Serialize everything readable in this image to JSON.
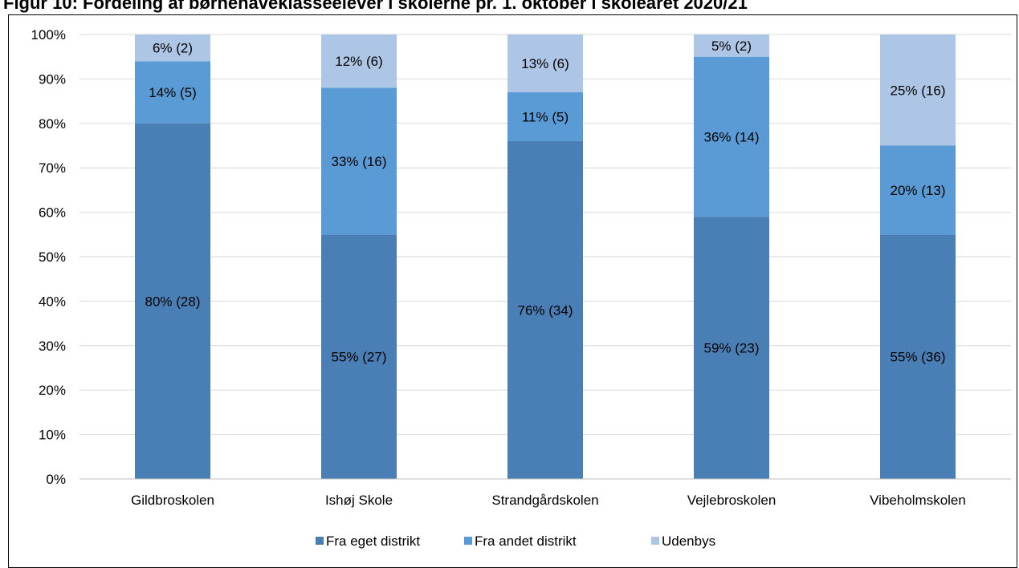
{
  "page_title": "Figur 10: Fordeling af børnehaveklasseelever i skolerne pr. 1. oktober i skoleåret 2020/21",
  "chart_data": {
    "type": "bar",
    "stacked": true,
    "title": "Figur 10: Fordeling af børnehaveklasseelever i skolerne pr. 1. oktober i skoleåret 2020/21",
    "xlabel": "",
    "ylabel": "",
    "ylim": [
      0,
      100
    ],
    "yticks": [
      0,
      10,
      20,
      30,
      40,
      50,
      60,
      70,
      80,
      90,
      100
    ],
    "ytick_format": "percent",
    "grid": true,
    "legend_position": "bottom",
    "categories": [
      "Gildbroskolen",
      "Ishøj Skole",
      "Strandgårdskolen",
      "Vejlebroskolen",
      "Vibeholmskolen"
    ],
    "series": [
      {
        "name": "Fra eget distrikt",
        "color": "#4a7fb5",
        "values": [
          80,
          55,
          76,
          59,
          55
        ],
        "labels": [
          "80% (28)",
          "55% (27)",
          "76% (34)",
          "59% (23)",
          "55% (36)"
        ]
      },
      {
        "name": "Fra andet distrikt",
        "color": "#5b9bd5",
        "values": [
          14,
          33,
          11,
          36,
          20
        ],
        "labels": [
          "14% (5)",
          "33% (16)",
          "11% (5)",
          "36% (14)",
          "20% (13)"
        ]
      },
      {
        "name": "Udenbys",
        "color": "#aec6e5",
        "values": [
          6,
          12,
          13,
          5,
          25
        ],
        "labels": [
          "6% (2)",
          "12% (6)",
          "13% (6)",
          "5% (2)",
          "25% (16)"
        ]
      }
    ]
  }
}
